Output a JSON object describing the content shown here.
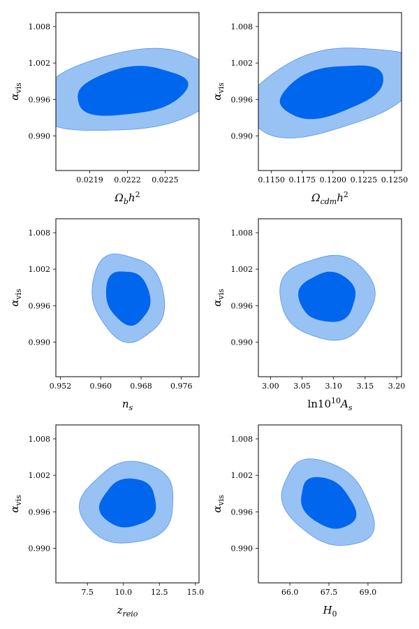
{
  "colors": {
    "inner": "#0066ee",
    "outer": "#99c2f4",
    "edge": "#4d94f0"
  },
  "chart_data": [
    {
      "type": "contour",
      "xlabel": "Ωbh²",
      "ylabel": "αvis",
      "xlim": [
        0.02163,
        0.02277
      ],
      "ylim": [
        0.9843,
        1.0103
      ],
      "xticks": [
        "0.0219",
        "0.0222",
        "0.0225"
      ],
      "xtick_values": [
        0.0219,
        0.0222,
        0.0225
      ],
      "yticks": [
        "0.990",
        "0.996",
        "1.002",
        "1.008"
      ],
      "ytick_values": [
        0.99,
        0.996,
        1.002,
        1.008
      ],
      "center": [
        0.02223,
        0.99735
      ],
      "outer": {
        "rx": 0.00074,
        "ry": 0.0065,
        "tilt": 0.45
      },
      "inner": {
        "rx": 0.00044,
        "ry": 0.0039,
        "tilt": 0.45
      }
    },
    {
      "type": "contour",
      "xlabel": "Ωcdmh²",
      "ylabel": "αvis",
      "xlim": [
        0.11394,
        0.12557
      ],
      "ylim": [
        0.9843,
        1.0103
      ],
      "xticks": [
        "0.1150",
        "0.1175",
        "0.1200",
        "0.1225",
        "0.1250"
      ],
      "xtick_values": [
        0.115,
        0.1175,
        0.12,
        0.1225,
        0.125
      ],
      "yticks": [
        "0.990",
        "0.996",
        "1.002",
        "1.008"
      ],
      "ytick_values": [
        0.99,
        0.996,
        1.002,
        1.008
      ],
      "center": [
        0.11985,
        0.9974
      ],
      "outer": {
        "rx": 0.007,
        "ry": 0.0067,
        "tilt": 0.75
      },
      "inner": {
        "rx": 0.0042,
        "ry": 0.004,
        "tilt": 0.75
      }
    },
    {
      "type": "contour",
      "xlabel": "ns",
      "ylabel": "αvis",
      "xlim": [
        0.9511,
        0.9795
      ],
      "ylim": [
        0.9843,
        1.0103
      ],
      "xticks": [
        "0.952",
        "0.960",
        "0.968",
        "0.976"
      ],
      "xtick_values": [
        0.952,
        0.96,
        0.968,
        0.976
      ],
      "yticks": [
        "0.990",
        "0.996",
        "1.002",
        "1.008"
      ],
      "ytick_values": [
        0.99,
        0.996,
        1.002,
        1.008
      ],
      "center": [
        0.9654,
        0.9974
      ],
      "outer": {
        "rx": 0.0072,
        "ry": 0.0071,
        "tilt": -0.25
      },
      "inner": {
        "rx": 0.0044,
        "ry": 0.0044,
        "tilt": -0.25
      }
    },
    {
      "type": "contour",
      "xlabel": "ln10¹⁰As",
      "ylabel": "αvis",
      "xlim": [
        2.9808,
        3.2077
      ],
      "ylim": [
        0.9843,
        1.0103
      ],
      "xticks": [
        "3.00",
        "3.05",
        "3.10",
        "3.15",
        "3.20"
      ],
      "xtick_values": [
        3.0,
        3.05,
        3.1,
        3.15,
        3.2
      ],
      "yticks": [
        "0.990",
        "0.996",
        "1.002",
        "1.008"
      ],
      "ytick_values": [
        0.99,
        0.996,
        1.002,
        1.008
      ],
      "center": [
        3.0906,
        0.9974
      ],
      "outer": {
        "rx": 0.075,
        "ry": 0.0069,
        "tilt": 0.0
      },
      "inner": {
        "rx": 0.045,
        "ry": 0.0041,
        "tilt": 0.0
      }
    },
    {
      "type": "contour",
      "xlabel": "zreio",
      "ylabel": "αvis",
      "xlim": [
        5.31,
        15.25
      ],
      "ylim": [
        0.9843,
        1.0103
      ],
      "xticks": [
        "7.5",
        "10.0",
        "12.5",
        "15.0"
      ],
      "xtick_values": [
        7.5,
        10.0,
        12.5,
        15.0
      ],
      "yticks": [
        "0.990",
        "0.996",
        "1.002",
        "1.008"
      ],
      "ytick_values": [
        0.99,
        0.996,
        1.002,
        1.008
      ],
      "center": [
        10.35,
        0.9974
      ],
      "outer": {
        "rx": 3.25,
        "ry": 0.0067,
        "tilt": 0.15
      },
      "inner": {
        "rx": 1.95,
        "ry": 0.004,
        "tilt": 0.15
      }
    },
    {
      "type": "contour",
      "xlabel": "H0",
      "ylabel": "αvis",
      "xlim": [
        64.79,
        70.29
      ],
      "ylim": [
        0.9843,
        1.0103
      ],
      "xticks": [
        "66.0",
        "67.5",
        "69.0"
      ],
      "xtick_values": [
        66.0,
        67.5,
        69.0
      ],
      "yticks": [
        "0.990",
        "0.996",
        "1.002",
        "1.008"
      ],
      "ytick_values": [
        0.99,
        0.996,
        1.002,
        1.008
      ],
      "center": [
        67.45,
        0.9974
      ],
      "outer": {
        "rx": 1.75,
        "ry": 0.0067,
        "tilt": -0.6
      },
      "inner": {
        "rx": 1.05,
        "ry": 0.004,
        "tilt": -0.6
      }
    }
  ]
}
